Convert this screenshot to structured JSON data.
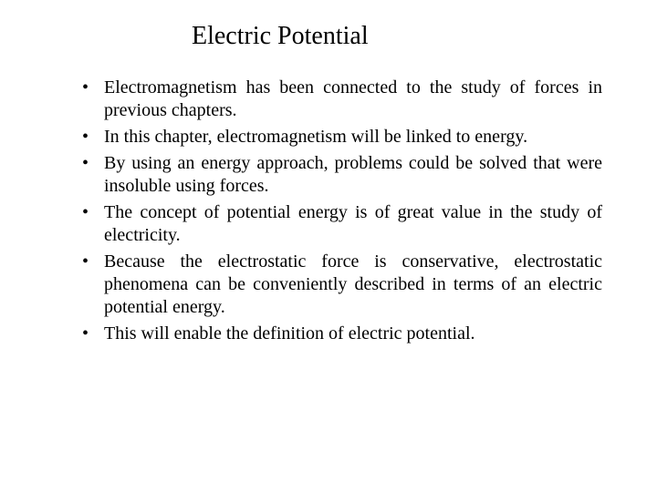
{
  "title": "Electric Potential",
  "bullets": [
    "Electromagnetism has been connected to the study of forces in previous chapters.",
    "In this chapter, electromagnetism will be linked to energy.",
    "By using an energy approach, problems could be solved that were insoluble using forces.",
    "The concept of potential energy is of great value in the study of electricity.",
    "Because the electrostatic force is conservative, electrostatic phenomena can be conveniently described in terms of an electric potential energy.",
    "This will enable the definition of electric potential."
  ],
  "style": {
    "background_color": "#ffffff",
    "text_color": "#000000",
    "font_family": "Times New Roman",
    "title_fontsize": 28,
    "body_fontsize": 20,
    "body_align": "justify"
  }
}
